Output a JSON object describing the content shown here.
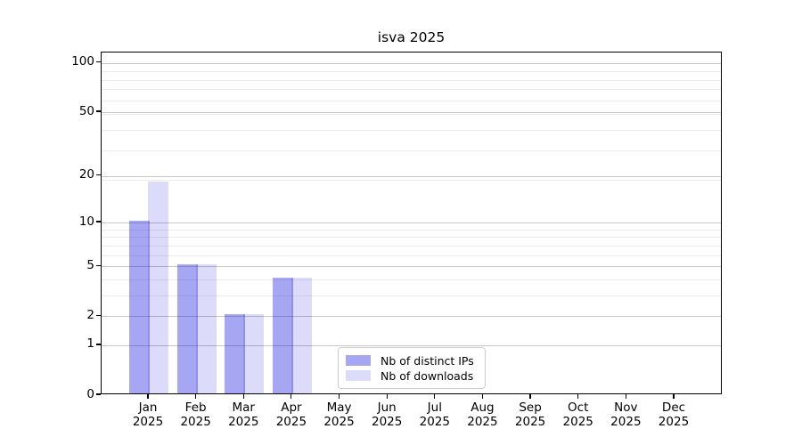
{
  "chart_data": {
    "type": "bar",
    "title": "isva 2025",
    "x_categories": [
      "Jan",
      "Feb",
      "Mar",
      "Apr",
      "May",
      "Jun",
      "Jul",
      "Aug",
      "Sep",
      "Oct",
      "Nov",
      "Dec"
    ],
    "x_year": "2025",
    "series": [
      {
        "name": "Nb of distinct IPs",
        "color": "rgba(20,20,222,0.38)",
        "solid_on_white": "#a6a6f2",
        "values": [
          10,
          5,
          2,
          4,
          0,
          0,
          0,
          0,
          0,
          0,
          0,
          0
        ]
      },
      {
        "name": "Nb of downloads",
        "color": "rgba(20,20,222,0.15)",
        "solid_on_white": "#dcdcfa",
        "values": [
          18,
          5,
          2,
          4,
          0,
          0,
          0,
          0,
          0,
          0,
          0,
          0
        ]
      }
    ],
    "y_scale": "log10(1+value)",
    "y_ticks": [
      0,
      1,
      2,
      5,
      10,
      20,
      50,
      100
    ],
    "y_minor_gridlines_at_1_plus_value": [
      4,
      5,
      7,
      8,
      9,
      10,
      20,
      30,
      40,
      50,
      60,
      70,
      80,
      90
    ],
    "ylim": [
      0,
      116
    ],
    "grid": "horizontal only",
    "legend_position": "inside lower-center",
    "colors": {
      "major_grid": "#c6c6c6",
      "minor_grid": "#ebebeb",
      "spine": "#000000",
      "legend_border": "#cccccc",
      "background": "#ffffff"
    }
  }
}
